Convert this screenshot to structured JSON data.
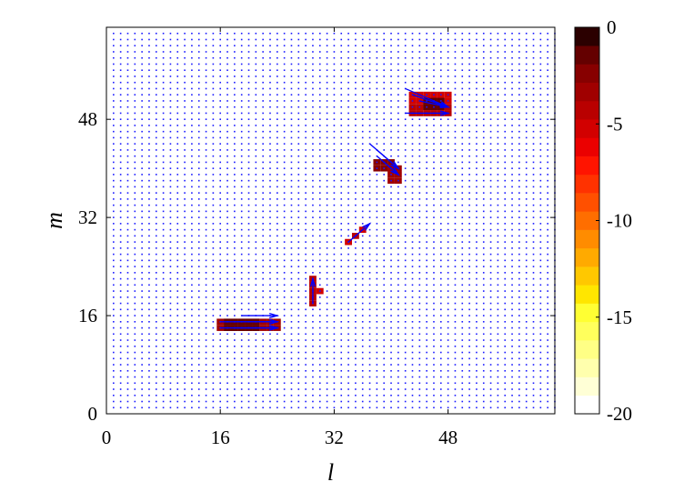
{
  "chart_data": {
    "type": "heatmap",
    "overlay": "quiver",
    "xlabel": "l",
    "ylabel": "m",
    "xlim": [
      0,
      63
    ],
    "ylim": [
      0,
      63
    ],
    "xticks": [
      0,
      16,
      32,
      48
    ],
    "yticks": [
      0,
      16,
      32,
      48
    ],
    "colorbar": {
      "range": [
        -20,
        0
      ],
      "ticks": [
        0,
        -5,
        -10,
        -15,
        -20
      ],
      "levels": 21,
      "colormap": "hot",
      "colors": [
        "#ffffff",
        "#ffffd6",
        "#ffffad",
        "#ffff85",
        "#ffff5c",
        "#ffff33",
        "#ffe600",
        "#ffc800",
        "#ffaa00",
        "#ff8c00",
        "#ff6e00",
        "#ff5000",
        "#ff3200",
        "#ff1400",
        "#eb0000",
        "#d20000",
        "#b90000",
        "#a00000",
        "#870000",
        "#640000",
        "#2b0000"
      ]
    },
    "background_value": -20,
    "cells": [
      {
        "l": [
          16,
          24
        ],
        "m": [
          14,
          15
        ],
        "value": -3
      },
      {
        "l": [
          17,
          21
        ],
        "m": [
          14,
          15
        ],
        "value": -1
      },
      {
        "l": [
          29,
          29
        ],
        "m": [
          18,
          22
        ],
        "value": -4
      },
      {
        "l": [
          30,
          30
        ],
        "m": [
          20,
          20
        ],
        "value": -5
      },
      {
        "l": [
          34,
          34
        ],
        "m": [
          28,
          28
        ],
        "value": -5
      },
      {
        "l": [
          35,
          35
        ],
        "m": [
          29,
          29
        ],
        "value": -4
      },
      {
        "l": [
          36,
          36
        ],
        "m": [
          30,
          30
        ],
        "value": -5
      },
      {
        "l": [
          38,
          40
        ],
        "m": [
          40,
          41
        ],
        "value": -2
      },
      {
        "l": [
          40,
          41
        ],
        "m": [
          38,
          40
        ],
        "value": -3
      },
      {
        "l": [
          43,
          48
        ],
        "m": [
          51,
          52
        ],
        "value": -5
      },
      {
        "l": [
          43,
          48
        ],
        "m": [
          49,
          50
        ],
        "value": -4
      },
      {
        "l": [
          45,
          47
        ],
        "m": [
          50,
          51
        ],
        "value": -1
      }
    ],
    "arrows": [
      {
        "l": 16,
        "m": 14,
        "dl": 8,
        "dm": 0
      },
      {
        "l": 16,
        "m": 15,
        "dl": 8,
        "dm": 0
      },
      {
        "l": 18,
        "m": 14,
        "dl": 6,
        "dm": 0
      },
      {
        "l": 18,
        "m": 15,
        "dl": 6,
        "dm": 0
      },
      {
        "l": 19,
        "m": 16,
        "dl": 5,
        "dm": 0
      },
      {
        "l": 29,
        "m": 18,
        "dl": 0,
        "dm": 4
      },
      {
        "l": 34,
        "m": 28,
        "dl": 3,
        "dm": 3
      },
      {
        "l": 37,
        "m": 44,
        "dl": 4,
        "dm": -4
      },
      {
        "l": 38,
        "m": 43,
        "dl": 3,
        "dm": -3
      },
      {
        "l": 38,
        "m": 42,
        "dl": 3,
        "dm": -3
      },
      {
        "l": 39,
        "m": 41,
        "dl": 2,
        "dm": -2
      },
      {
        "l": 42,
        "m": 53,
        "dl": 6,
        "dm": -3
      },
      {
        "l": 43,
        "m": 52,
        "dl": 5,
        "dm": -2
      },
      {
        "l": 44,
        "m": 51,
        "dl": 4,
        "dm": -1
      },
      {
        "l": 42,
        "m": 49,
        "dl": 6,
        "dm": 0
      }
    ]
  }
}
